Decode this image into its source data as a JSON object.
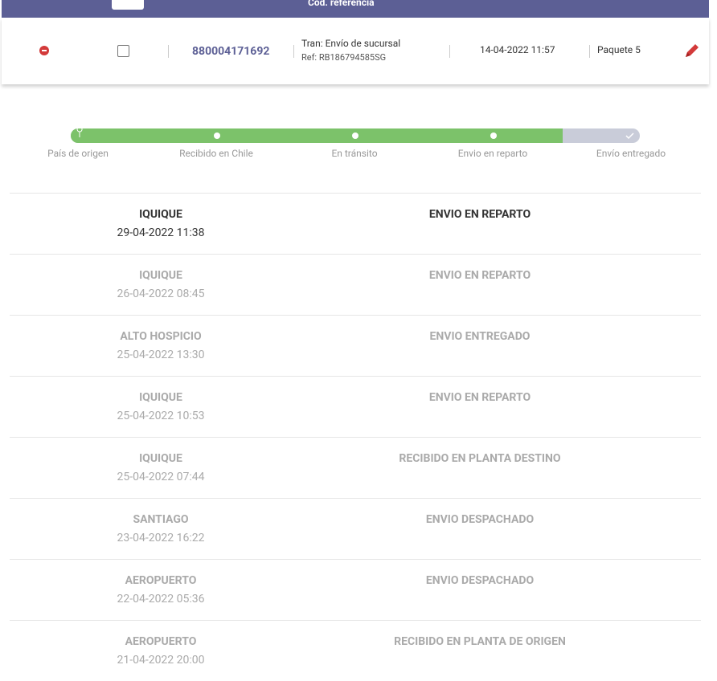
{
  "header": {
    "column_label": "Cód. referencia"
  },
  "shipment": {
    "tracking_number": "880004171692",
    "service": "Tran: Envío de sucursal",
    "reference": "Ref: RB186794585SG",
    "date": "14-04-2022 11:57",
    "package": "Paquete 5"
  },
  "progress": {
    "steps": [
      "País de origen",
      "Recibido en Chile",
      "En tránsito",
      "Envio en reparto",
      "Envío entregado"
    ]
  },
  "events": [
    {
      "location": "IQUIQUE",
      "date": "29-04-2022 11:38",
      "status": "ENVIO EN REPARTO"
    },
    {
      "location": "IQUIQUE",
      "date": "26-04-2022 08:45",
      "status": "ENVIO EN REPARTO"
    },
    {
      "location": "ALTO HOSPICIO",
      "date": "25-04-2022 13:30",
      "status": "ENVIO ENTREGADO"
    },
    {
      "location": "IQUIQUE",
      "date": "25-04-2022 10:53",
      "status": "ENVIO EN REPARTO"
    },
    {
      "location": "IQUIQUE",
      "date": "25-04-2022 07:44",
      "status": "RECIBIDO EN PLANTA DESTINO"
    },
    {
      "location": "SANTIAGO",
      "date": "23-04-2022 16:22",
      "status": "ENVIO DESPACHADO"
    },
    {
      "location": "AEROPUERTO",
      "date": "22-04-2022 05:36",
      "status": "ENVIO DESPACHADO"
    },
    {
      "location": "AEROPUERTO",
      "date": "21-04-2022 20:00",
      "status": "RECIBIDO EN PLANTA DE ORIGEN"
    }
  ]
}
